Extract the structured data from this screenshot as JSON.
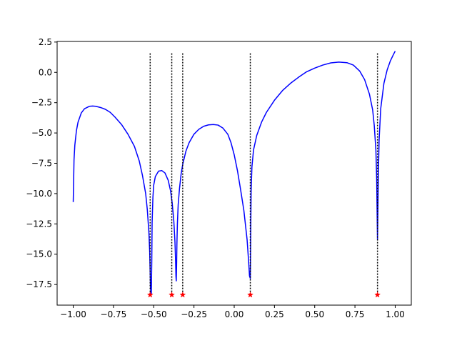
{
  "chart_data": {
    "type": "line",
    "title": "",
    "xlabel": "",
    "ylabel": "",
    "xlim": [
      -1.1,
      1.1
    ],
    "ylim": [
      -19.2,
      2.55
    ],
    "grid": false,
    "legend": "none",
    "x_ticks": [
      -1.0,
      -0.75,
      -0.5,
      -0.25,
      0.0,
      0.25,
      0.5,
      0.75,
      1.0
    ],
    "x_tick_labels": [
      "−1.00",
      "−0.75",
      "−0.50",
      "−0.25",
      "0.00",
      "0.25",
      "0.50",
      "0.75",
      "1.00"
    ],
    "y_ticks": [
      2.5,
      0.0,
      -2.5,
      -5.0,
      -7.5,
      -10.0,
      -12.5,
      -15.0,
      -17.5
    ],
    "y_tick_labels": [
      "2.5",
      "0.0",
      "−2.5",
      "−5.0",
      "−7.5",
      "−10.0",
      "−12.5",
      "−15.0",
      "−17.5"
    ],
    "series": [
      {
        "style": "solid",
        "color": "#0000ff",
        "x": [
          -1.0,
          -0.995,
          -0.99,
          -0.98,
          -0.97,
          -0.95,
          -0.93,
          -0.9,
          -0.88,
          -0.86,
          -0.83,
          -0.8,
          -0.77,
          -0.74,
          -0.7,
          -0.66,
          -0.62,
          -0.59,
          -0.57,
          -0.55,
          -0.54,
          -0.53,
          -0.525,
          -0.52,
          -0.515,
          -0.512,
          -0.51,
          -0.505,
          -0.5,
          -0.49,
          -0.47,
          -0.45,
          -0.43,
          -0.41,
          -0.395,
          -0.385,
          -0.375,
          -0.368,
          -0.364,
          -0.362,
          -0.36,
          -0.358,
          -0.356,
          -0.353,
          -0.348,
          -0.34,
          -0.33,
          -0.32,
          -0.3,
          -0.28,
          -0.25,
          -0.22,
          -0.19,
          -0.16,
          -0.13,
          -0.1,
          -0.07,
          -0.04,
          -0.02,
          0.0,
          0.02,
          0.04,
          0.06,
          0.08,
          0.09,
          0.095,
          0.1,
          0.103,
          0.105,
          0.11,
          0.12,
          0.14,
          0.17,
          0.2,
          0.25,
          0.3,
          0.35,
          0.4,
          0.45,
          0.5,
          0.55,
          0.6,
          0.65,
          0.7,
          0.74,
          0.78,
          0.81,
          0.84,
          0.86,
          0.87,
          0.88,
          0.885,
          0.89,
          0.895,
          0.9,
          0.91,
          0.93,
          0.95,
          0.97,
          0.99,
          1.0
        ],
        "y": [
          -10.7,
          -7.2,
          -6.0,
          -4.8,
          -4.1,
          -3.35,
          -3.0,
          -2.8,
          -2.78,
          -2.8,
          -2.9,
          -3.05,
          -3.3,
          -3.7,
          -4.3,
          -5.1,
          -6.1,
          -7.3,
          -8.5,
          -10.0,
          -11.3,
          -13.2,
          -14.8,
          -17.8,
          -18.3,
          -15.5,
          -12.4,
          -10.3,
          -9.3,
          -8.6,
          -8.15,
          -8.1,
          -8.3,
          -8.9,
          -9.8,
          -10.8,
          -12.3,
          -14.0,
          -15.6,
          -16.8,
          -17.2,
          -16.0,
          -14.2,
          -12.5,
          -10.9,
          -9.6,
          -8.4,
          -7.6,
          -6.5,
          -5.8,
          -5.1,
          -4.7,
          -4.45,
          -4.33,
          -4.3,
          -4.35,
          -4.6,
          -5.1,
          -5.8,
          -6.8,
          -8.1,
          -9.7,
          -11.4,
          -13.8,
          -15.7,
          -16.8,
          -17.0,
          -12.5,
          -9.8,
          -7.8,
          -6.4,
          -5.2,
          -4.1,
          -3.3,
          -2.3,
          -1.5,
          -0.9,
          -0.4,
          0.05,
          0.35,
          0.6,
          0.78,
          0.85,
          0.8,
          0.6,
          0.1,
          -0.6,
          -1.8,
          -3.1,
          -4.4,
          -6.4,
          -8.8,
          -13.8,
          -8.8,
          -5.6,
          -3.0,
          -0.9,
          0.2,
          0.95,
          1.5,
          1.75
        ]
      },
      {
        "style": "dotted",
        "color": "#000000",
        "vlines_x": [
          -0.522,
          -0.388,
          -0.32,
          0.1,
          0.89
        ],
        "vlines_y_range": [
          -18.35,
          1.6
        ]
      },
      {
        "style": "marker",
        "marker": "star",
        "color": "#ff0000",
        "x": [
          -0.522,
          -0.388,
          -0.32,
          0.1,
          0.89
        ],
        "y": [
          -18.35,
          -18.35,
          -18.35,
          -18.35,
          -18.35
        ]
      }
    ]
  }
}
